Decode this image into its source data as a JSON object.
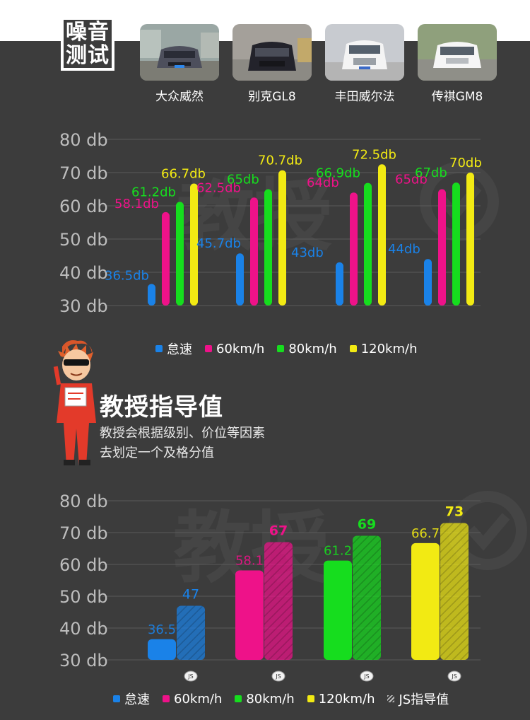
{
  "header": {
    "badge_line1": "噪音",
    "badge_line2": "测试"
  },
  "cars": [
    {
      "name": "大众威然",
      "color": "#5a5a6a"
    },
    {
      "name": "别克GL8",
      "color": "#2a2a32"
    },
    {
      "name": "丰田威尔法",
      "color": "#eeeeee"
    },
    {
      "name": "传祺GM8",
      "color": "#f2f2f2"
    }
  ],
  "watermark_text": "教授",
  "colors": {
    "idle": "#1a82e8",
    "60": "#ee1289",
    "80": "#16dd1e",
    "120": "#f2ea13",
    "guide": "#9a9a9a"
  },
  "legend1": [
    {
      "label": "怠速",
      "color": "#1a82e8"
    },
    {
      "label": "60km/h",
      "color": "#ee1289"
    },
    {
      "label": "80km/h",
      "color": "#16dd1e"
    },
    {
      "label": "120km/h",
      "color": "#f2ea13"
    }
  ],
  "legend2": [
    {
      "label": "怠速",
      "color": "#1a82e8"
    },
    {
      "label": "60km/h",
      "color": "#ee1289"
    },
    {
      "label": "80km/h",
      "color": "#16dd1e"
    },
    {
      "label": "120km/h",
      "color": "#f2ea13"
    },
    {
      "label": "JS指导值",
      "color": "hatch"
    }
  ],
  "professor": {
    "title": "教授指导值",
    "desc_line1": "教授会根据级别、价位等因素",
    "desc_line2": "去划定一个及格分值"
  },
  "chart_data": [
    {
      "type": "bar",
      "categories": [
        "大众威然",
        "别克GL8",
        "丰田威尔法",
        "传祺GM8"
      ],
      "yticks": [
        "80 db",
        "70 db",
        "60 db",
        "50 db",
        "40 db",
        "30 db"
      ],
      "ylim": [
        30,
        80
      ],
      "series": [
        {
          "name": "怠速",
          "values": [
            36.5,
            45.7,
            43,
            44
          ],
          "labels": [
            "36.5db",
            "45.7db",
            "43db",
            "44db"
          ]
        },
        {
          "name": "60km/h",
          "values": [
            58.1,
            62.5,
            64,
            65
          ],
          "labels": [
            "58.1db",
            "62.5db",
            "64db",
            "65db"
          ]
        },
        {
          "name": "80km/h",
          "values": [
            61.2,
            65,
            66.9,
            67
          ],
          "labels": [
            "61.2db",
            "65db",
            "66.9db",
            "67db"
          ]
        },
        {
          "name": "120km/h",
          "values": [
            66.7,
            70.7,
            72.5,
            70
          ],
          "labels": [
            "66.7db",
            "70.7db",
            "72.5db",
            "70db"
          ]
        }
      ]
    },
    {
      "type": "bar",
      "yticks": [
        "80 db",
        "70 db",
        "60 db",
        "50 db",
        "40 db",
        "30 db"
      ],
      "ylim": [
        30,
        80
      ],
      "groups": [
        {
          "measured": 36.5,
          "measured_label": "36.5",
          "guide": 47,
          "guide_label": "47",
          "tag": "JS"
        },
        {
          "measured": 58.1,
          "measured_label": "58.1",
          "guide": 67,
          "guide_label": "67",
          "tag": "JS"
        },
        {
          "measured": 61.2,
          "measured_label": "61.2",
          "guide": 69,
          "guide_label": "69",
          "tag": "JS"
        },
        {
          "measured": 66.7,
          "measured_label": "66.7",
          "guide": 73,
          "guide_label": "73",
          "tag": "JS"
        }
      ],
      "series": [
        {
          "name": "怠速"
        },
        {
          "name": "60km/h"
        },
        {
          "name": "80km/h"
        },
        {
          "name": "120km/h"
        },
        {
          "name": "JS指导值"
        }
      ]
    }
  ]
}
